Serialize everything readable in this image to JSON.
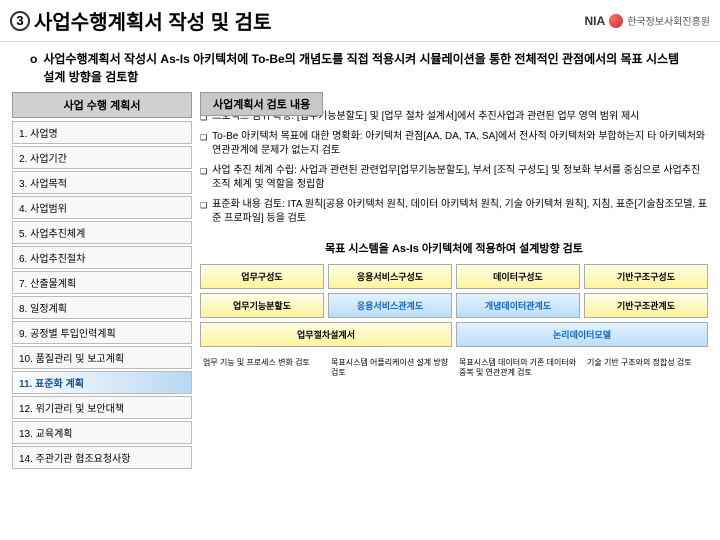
{
  "header": {
    "number": "3",
    "title": "사업수행계획서 작성 및 검토",
    "logo_nia": "NIA",
    "logo_text": "한국정보사회진흥원"
  },
  "intro": {
    "bullet": "o",
    "text": "사업수행계획서 작성시 As-Is 아키텍처에 To-Be의 개념도를 직접 적용시켜 시뮬레이션을 통한 전체적인 관점에서의 목표 시스템 설계 방향을 검토함"
  },
  "left": {
    "header": "사업 수행 계획서",
    "items": [
      {
        "label": "1. 사업명",
        "hl": false
      },
      {
        "label": "2. 사업기간",
        "hl": false
      },
      {
        "label": "3. 사업목적",
        "hl": false
      },
      {
        "label": "4. 사업범위",
        "hl": false
      },
      {
        "label": "5. 사업추진체계",
        "hl": false
      },
      {
        "label": "6. 사업추진절차",
        "hl": false
      },
      {
        "label": "7. 산출물계획",
        "hl": false
      },
      {
        "label": "8. 일정계획",
        "hl": false
      },
      {
        "label": "9. 공정별 투입인력계획",
        "hl": false
      },
      {
        "label": "10. 품질관리 및 보고계획",
        "hl": false
      },
      {
        "label": "11. 표준화 계획",
        "hl": true
      },
      {
        "label": "12. 위기관리 및 보안대책",
        "hl": false
      },
      {
        "label": "13. 교육계획",
        "hl": false
      },
      {
        "label": "14. 주관기관 협조요청사항",
        "hl": false
      }
    ]
  },
  "review": {
    "title": "사업계획서 검토 내용",
    "items": [
      "프로젝트 범위 확정: [업무기능분할도] 및 [업무 절차 설계서]에서 추진사업과 관련된 업무 영역 범위 제시",
      "To-Be 아키텍처 목표에 대한 명확화: 아키텍처 관점[AA, DA, TA, SA]에서 전사적 아키텍처와 부합하는지 타 아키텍처와 연관관계에 문제가 없는지 검토",
      "사업 추진 체계 수립: 사업과 관련된 관련업무[업무기능분할도], 부서 [조직 구성도] 및 정보화 부서를 중심으로 사업추진 조직 체계 및 역할을 정립함",
      "표준화 내용 검토: ITA 원칙[공용 아키텍처 원칙, 데이터 아키텍처 원칙, 기술 아키텍처 원칙], 지침, 표준[기술참조모델, 표준 프로파일] 등을 검토"
    ]
  },
  "target": {
    "title": "목표 시스템을 As-Is 아키텍처에 적용하여 설계방향 검토",
    "row1": [
      "업무구성도",
      "응용서비스구성도",
      "데이터구성도",
      "기반구조구성도"
    ],
    "row2": [
      "업무기능분할도",
      "응용서비스관계도",
      "개념데이터관계도",
      "기반구조관계도"
    ],
    "row3": [
      {
        "label": "업무절차설계서",
        "span": 2
      },
      {
        "label": "논리데이터모델",
        "span": 2
      }
    ],
    "descs": [
      "업무 기능 및 프로세스 변화 검토",
      "목표시스템 어플리케이션 설계 방향 검토",
      "목표시스템 데이터의 기존 데이터와 중복 및 연관관계 검토",
      "기술 기반 구조와의 정합성 검토"
    ]
  },
  "colors": {
    "yellow_bg": "#fff59d",
    "blue_bg": "#bbdefb",
    "hl_bg": "#b8d8f0"
  }
}
